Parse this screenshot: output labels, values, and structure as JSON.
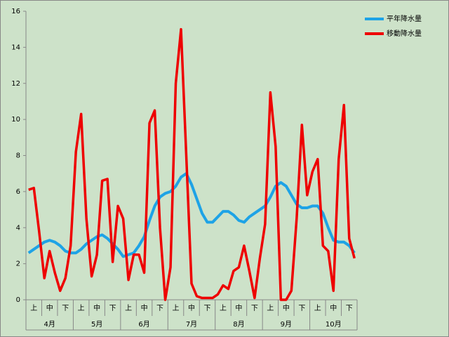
{
  "chart_data": {
    "type": "line",
    "categories": [
      null,
      "上",
      null,
      null,
      "中",
      null,
      null,
      "下",
      null,
      null,
      "上",
      null,
      null,
      "中",
      null,
      null,
      "下",
      null,
      null,
      "上",
      null,
      null,
      "中",
      null,
      null,
      "下",
      null,
      null,
      "上",
      null,
      null,
      "中",
      null,
      null,
      "下",
      null,
      null,
      "上",
      null,
      null,
      "中",
      null,
      null,
      "下",
      null,
      null,
      "上",
      null,
      null,
      "中",
      null,
      null,
      "下",
      null,
      null,
      "上",
      null,
      null,
      "中",
      null,
      null,
      "下",
      null
    ],
    "groups": [
      "4月",
      "5月",
      "6月",
      "7月",
      "8月",
      "9月",
      "10月"
    ],
    "series": [
      {
        "name": "平年降水量",
        "color": "#1ea3e6",
        "values": [
          2.6,
          2.8,
          3.0,
          3.2,
          3.3,
          3.2,
          3.0,
          2.7,
          2.6,
          2.6,
          2.8,
          3.1,
          3.3,
          3.5,
          3.6,
          3.4,
          3.1,
          2.8,
          2.4,
          2.5,
          2.6,
          3.0,
          3.5,
          4.4,
          5.2,
          5.7,
          5.9,
          6.0,
          6.3,
          6.8,
          7.0,
          6.4,
          5.6,
          4.8,
          4.3,
          4.3,
          4.6,
          4.9,
          4.9,
          4.7,
          4.4,
          4.3,
          4.6,
          4.8,
          5.0,
          5.2,
          5.7,
          6.3,
          6.5,
          6.3,
          5.8,
          5.3,
          5.1,
          5.1,
          5.2,
          5.2,
          4.8,
          4.0,
          3.3,
          3.2,
          3.2,
          3.0,
          2.6
        ]
      },
      {
        "name": "移動降水量",
        "color": "#ee0000",
        "values": [
          6.1,
          6.2,
          3.8,
          1.2,
          2.7,
          1.5,
          0.5,
          1.2,
          3.0,
          8.2,
          10.3,
          4.5,
          1.3,
          2.5,
          6.6,
          6.7,
          2.1,
          5.2,
          4.5,
          1.1,
          2.5,
          2.5,
          1.5,
          9.8,
          10.5,
          4.0,
          0,
          1.8,
          12.0,
          15.0,
          8.0,
          0.9,
          0.2,
          0.1,
          0.1,
          0.1,
          0.3,
          0.8,
          0.6,
          1.6,
          1.8,
          3.0,
          1.6,
          0.1,
          2.3,
          4.2,
          11.5,
          8.5,
          0,
          0,
          0.5,
          4.5,
          9.7,
          5.8,
          7.1,
          7.8,
          3.0,
          2.7,
          0.5,
          7.8,
          10.8,
          3.4,
          2.3
        ]
      }
    ],
    "ylim": [
      0,
      16
    ],
    "yticks": [
      0,
      2,
      4,
      6,
      8,
      10,
      12,
      14,
      16
    ],
    "legend": "top-right"
  }
}
